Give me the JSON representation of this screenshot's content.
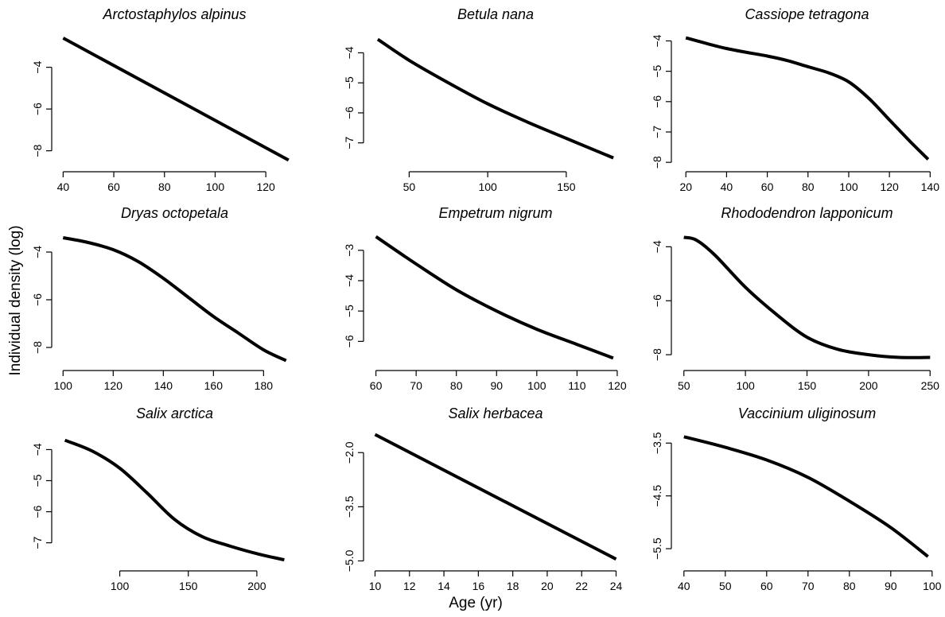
{
  "figure": {
    "xlabel": "Age (yr)",
    "ylabel": "Individual density (log)"
  },
  "chart_data": [
    {
      "type": "line",
      "title": "Arctostaphylos alpinus",
      "x_ticks": [
        40,
        60,
        80,
        100,
        120
      ],
      "y_ticks": [
        -4,
        -6,
        -8
      ],
      "x_tick_labels": [
        "40",
        "60",
        "80",
        "100",
        "120"
      ],
      "y_tick_labels": [
        "−4",
        "−6",
        "−8"
      ],
      "xlim": [
        38,
        130
      ],
      "ylim": [
        -8.7,
        -2.3
      ],
      "series": [
        {
          "x": [
            40,
            129
          ],
          "y": [
            -2.6,
            -8.45
          ]
        }
      ]
    },
    {
      "type": "line",
      "title": "Betula nana",
      "x_ticks": [
        50,
        100,
        150
      ],
      "y_ticks": [
        -4,
        -5,
        -6,
        -7
      ],
      "x_tick_labels": [
        "50",
        "100",
        "150"
      ],
      "y_tick_labels": [
        "−4",
        "−5",
        "−6",
        "−7"
      ],
      "xlim": [
        25,
        185
      ],
      "ylim": [
        -7.75,
        -3.3
      ],
      "series": [
        {
          "x": [
            30,
            50,
            75,
            100,
            125,
            150,
            180
          ],
          "y": [
            -3.55,
            -4.25,
            -5,
            -5.7,
            -6.3,
            -6.85,
            -7.5
          ]
        }
      ]
    },
    {
      "type": "line",
      "title": "Cassiope tetragona",
      "x_ticks": [
        20,
        40,
        60,
        80,
        100,
        120,
        140
      ],
      "y_ticks": [
        -4,
        -5,
        -6,
        -7,
        -8
      ],
      "x_tick_labels": [
        "20",
        "40",
        "60",
        "80",
        "100",
        "120",
        "140"
      ],
      "y_tick_labels": [
        "−4",
        "−5",
        "−6",
        "−7",
        "−8"
      ],
      "xlim": [
        16,
        143
      ],
      "ylim": [
        -8.1,
        -3.7
      ],
      "series": [
        {
          "x": [
            20,
            40,
            60,
            70,
            80,
            90,
            100,
            110,
            120,
            130,
            139
          ],
          "y": [
            -3.9,
            -4.25,
            -4.5,
            -4.65,
            -4.85,
            -5.05,
            -5.35,
            -5.9,
            -6.6,
            -7.3,
            -7.9
          ]
        }
      ]
    },
    {
      "type": "line",
      "title": "Dryas octopetala",
      "x_ticks": [
        100,
        120,
        140,
        160,
        180
      ],
      "y_ticks": [
        -4,
        -6,
        -8
      ],
      "x_tick_labels": [
        "100",
        "120",
        "140",
        "160",
        "180"
      ],
      "y_tick_labels": [
        "−4",
        "−6",
        "−8"
      ],
      "xlim": [
        98,
        191
      ],
      "ylim": [
        -8.7,
        -3.1
      ],
      "series": [
        {
          "x": [
            100,
            110,
            120,
            130,
            140,
            150,
            160,
            170,
            180,
            189
          ],
          "y": [
            -3.4,
            -3.6,
            -3.9,
            -4.4,
            -5.1,
            -5.9,
            -6.7,
            -7.4,
            -8.1,
            -8.55
          ]
        }
      ]
    },
    {
      "type": "line",
      "title": "Empetrum nigrum",
      "x_ticks": [
        60,
        70,
        80,
        90,
        100,
        110,
        120
      ],
      "y_ticks": [
        -3,
        -4,
        -5,
        -6
      ],
      "x_tick_labels": [
        "60",
        "70",
        "80",
        "90",
        "100",
        "110",
        "120"
      ],
      "y_tick_labels": [
        "−3",
        "−4",
        "−5",
        "−6"
      ],
      "xlim": [
        58.5,
        121
      ],
      "ylim": [
        -6.75,
        -2.35
      ],
      "series": [
        {
          "x": [
            60,
            70,
            80,
            90,
            100,
            110,
            119
          ],
          "y": [
            -2.55,
            -3.45,
            -4.3,
            -5,
            -5.6,
            -6.1,
            -6.55
          ]
        }
      ]
    },
    {
      "type": "line",
      "title": "Rhododendron lapponicum",
      "x_ticks": [
        50,
        100,
        150,
        200,
        250
      ],
      "y_ticks": [
        -4,
        -6,
        -8
      ],
      "x_tick_labels": [
        "50",
        "100",
        "150",
        "200",
        "250"
      ],
      "y_tick_labels": [
        "−4",
        "−6",
        "−8"
      ],
      "xlim": [
        45,
        255
      ],
      "ylim": [
        -8.35,
        -3.4
      ],
      "series": [
        {
          "x": [
            50,
            60,
            75,
            100,
            125,
            150,
            175,
            200,
            225,
            250
          ],
          "y": [
            -3.65,
            -3.75,
            -4.3,
            -5.5,
            -6.5,
            -7.35,
            -7.8,
            -8,
            -8.1,
            -8.1
          ]
        }
      ]
    },
    {
      "type": "line",
      "title": "Salix arctica",
      "x_ticks": [
        100,
        150,
        200
      ],
      "y_ticks": [
        -4,
        -5,
        -6,
        -7
      ],
      "x_tick_labels": [
        "100",
        "150",
        "200"
      ],
      "y_tick_labels": [
        "−4",
        "−5",
        "−6",
        "−7"
      ],
      "xlim": [
        55,
        225
      ],
      "ylim": [
        -7.7,
        -3.4
      ],
      "series": [
        {
          "x": [
            60,
            80,
            100,
            120,
            140,
            160,
            180,
            200,
            220
          ],
          "y": [
            -3.7,
            -4.05,
            -4.6,
            -5.4,
            -6.25,
            -6.8,
            -7.1,
            -7.35,
            -7.55
          ]
        }
      ]
    },
    {
      "type": "line",
      "title": "Salix herbacea",
      "x_ticks": [
        10,
        12,
        14,
        16,
        18,
        20,
        22,
        24
      ],
      "y_ticks": [
        -2,
        -3.5,
        -5
      ],
      "x_tick_labels": [
        "10",
        "12",
        "14",
        "16",
        "18",
        "20",
        "22",
        "24"
      ],
      "y_tick_labels": [
        "−2.0",
        "−3.5",
        "−5.0"
      ],
      "xlim": [
        9.7,
        24.3
      ],
      "ylim": [
        -5.1,
        -1.4
      ],
      "series": [
        {
          "x": [
            10,
            24
          ],
          "y": [
            -1.5,
            -4.95
          ]
        }
      ]
    },
    {
      "type": "line",
      "title": "Vaccinium uliginosum",
      "x_ticks": [
        40,
        50,
        60,
        70,
        80,
        90,
        100
      ],
      "y_ticks": [
        -3.5,
        -4.5,
        -5.5
      ],
      "x_tick_labels": [
        "40",
        "50",
        "60",
        "70",
        "80",
        "90",
        "100"
      ],
      "y_tick_labels": [
        "−3.5",
        "−4.5",
        "−5.5"
      ],
      "xlim": [
        38.5,
        101
      ],
      "ylim": [
        -5.8,
        -3.27
      ],
      "series": [
        {
          "x": [
            40,
            50,
            60,
            70,
            80,
            90,
            99
          ],
          "y": [
            -3.38,
            -3.58,
            -3.82,
            -4.15,
            -4.6,
            -5.1,
            -5.65
          ]
        }
      ]
    }
  ]
}
